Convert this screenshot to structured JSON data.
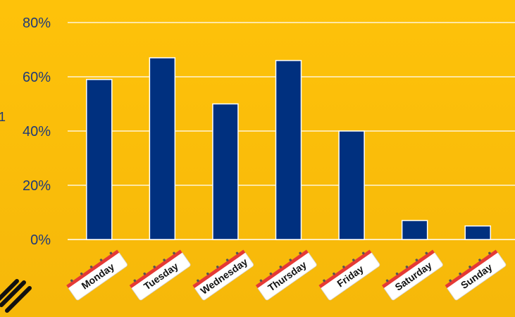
{
  "chart_data": {
    "type": "bar",
    "categories": [
      "Monday",
      "Tuesday",
      "Wednesday",
      "Thursday",
      "Friday",
      "Saturday",
      "Sunday"
    ],
    "values": [
      59,
      67,
      50,
      66,
      40,
      7,
      5
    ],
    "unit": "%",
    "ylim": [
      0,
      80
    ],
    "yticks": [
      "0%",
      "20%",
      "40%",
      "60%",
      "80%"
    ],
    "ylabel_fragment": "1",
    "grid": true,
    "bar_color": "#00307f",
    "gridline_color": "#ffffff",
    "background_color": "#fec20a",
    "tick_label_color": "#1f3a78",
    "tag_stripe_color": "#e53935"
  }
}
